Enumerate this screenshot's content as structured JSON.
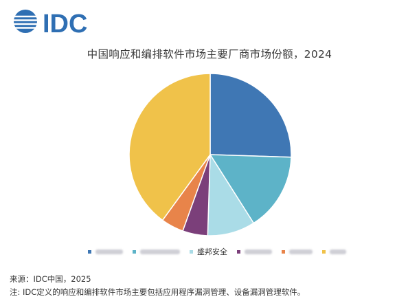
{
  "logo": {
    "text": "IDC",
    "brand_color": "#2f6fb3"
  },
  "chart_data": {
    "type": "pie",
    "title": "中国响应和编排软件市场主要厂商市场份额，2024",
    "slices": [
      {
        "name": "",
        "value": 25.5,
        "color": "#3f77b4",
        "label_visible": false
      },
      {
        "name": "",
        "value": 15.5,
        "color": "#5db3c8",
        "label_visible": false
      },
      {
        "name": "盛邦安全",
        "value": 9.5,
        "color": "#aadce7",
        "label_visible": true
      },
      {
        "name": "",
        "value": 5.0,
        "color": "#7b3f7a",
        "label_visible": false
      },
      {
        "name": "",
        "value": 4.5,
        "color": "#e8844a",
        "label_visible": false
      },
      {
        "name": "",
        "value": 40.0,
        "color": "#f0c24a",
        "label_visible": false
      }
    ],
    "legend_position": "bottom"
  },
  "footer": {
    "source": "来源：IDC中国，2025",
    "note": "注: IDC定义的响应和编排软件市场主要包括应用程序漏洞管理、设备漏洞管理软件。"
  }
}
